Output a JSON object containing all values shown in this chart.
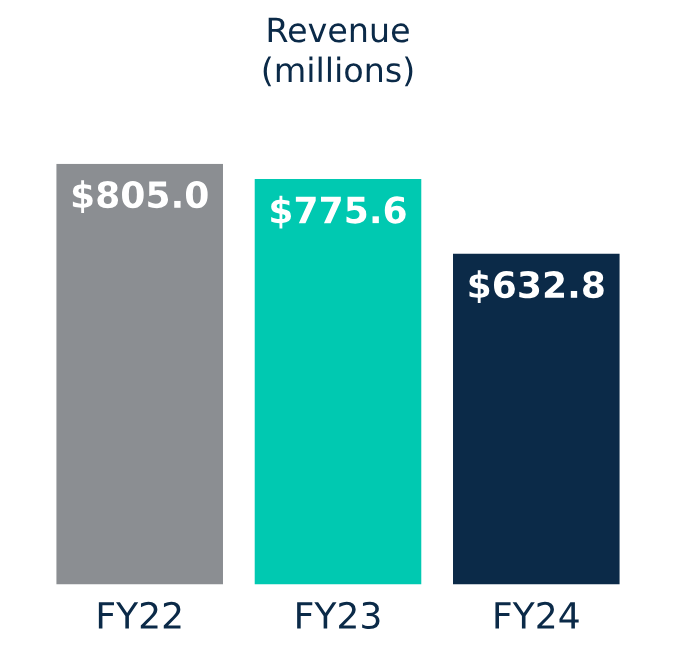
{
  "chart_data": {
    "type": "bar",
    "title": "Revenue\n(millions)",
    "categories": [
      "FY22",
      "FY23",
      "FY24"
    ],
    "values": [
      805.0,
      775.6,
      632.8
    ],
    "colors": [
      "#8b8e92",
      "#00c9b1",
      "#0b2a48"
    ],
    "value_labels": [
      "$805.0",
      "$775.6",
      "$632.8"
    ],
    "grid": false,
    "legend": false
  }
}
